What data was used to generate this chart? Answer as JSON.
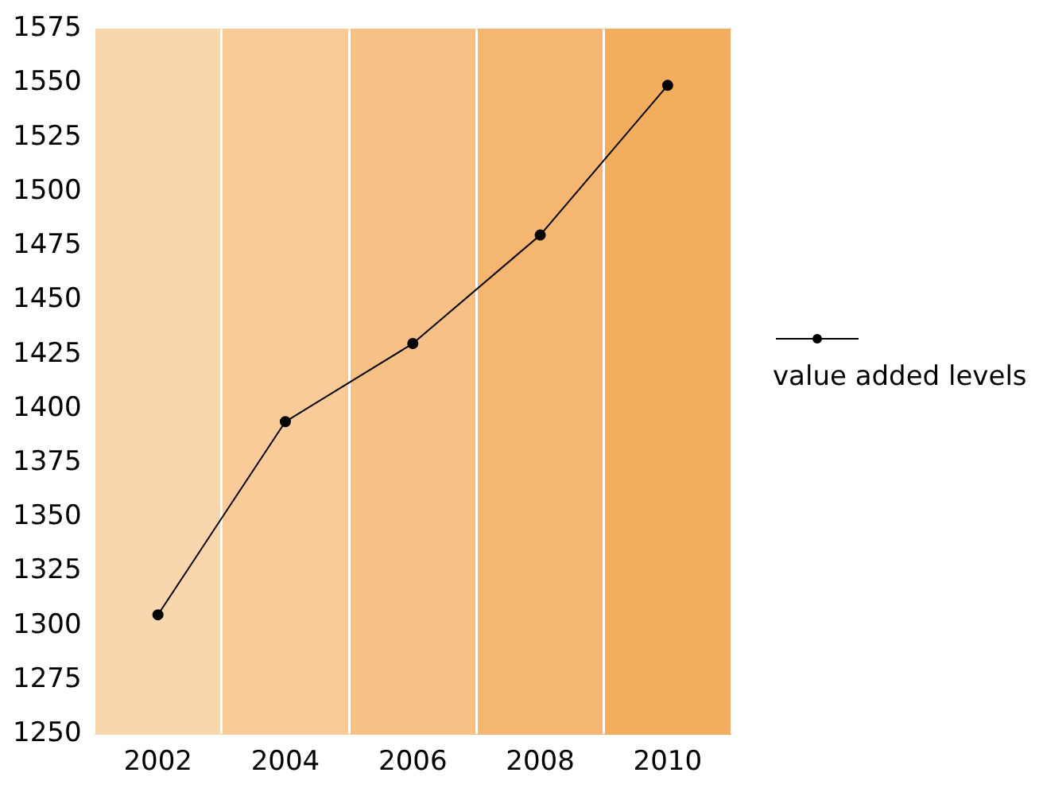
{
  "chart_data": {
    "type": "line",
    "categories": [
      "2002",
      "2004",
      "2006",
      "2008",
      "2010"
    ],
    "series": [
      {
        "name": "value added levels",
        "color": "#000000",
        "values": [
          1305,
          1394,
          1430,
          1480,
          1549
        ]
      }
    ],
    "ylim": [
      1250,
      1575
    ],
    "yticks": [
      1250,
      1275,
      1300,
      1325,
      1350,
      1375,
      1400,
      1425,
      1450,
      1475,
      1500,
      1525,
      1550,
      1575
    ],
    "grid": "x",
    "legend": "right",
    "marker": "circle",
    "line_style": "solid"
  }
}
